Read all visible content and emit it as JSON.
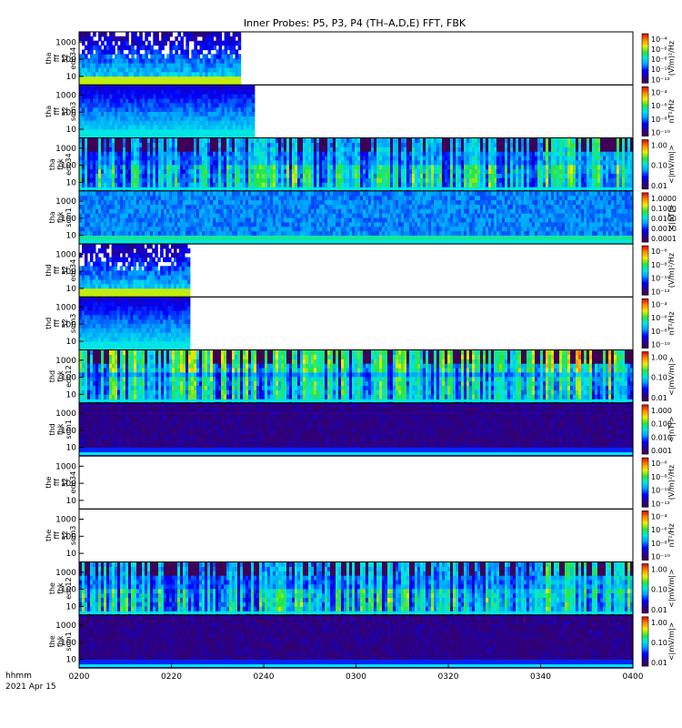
{
  "title": "Inner Probes: P5, P3, P4 (TH–A,D,E) FFT, FBK",
  "time_axis": {
    "unit_label": "hhmm",
    "date_label": "2021 Apr 15",
    "ticks": [
      "0200",
      "0220",
      "0240",
      "0300",
      "0320",
      "0340",
      "0400"
    ]
  },
  "chart_data": {
    "type": "heatmap",
    "title": "Inner Probes: P5, P3, P4 (TH–A,D,E) FFT, FBK",
    "x_range": [
      "02:00",
      "04:00"
    ],
    "y_scale": "log",
    "y_ticks": [
      10,
      100,
      1000
    ],
    "panels": [
      {
        "label": [
          "tha",
          "fff",
          "32",
          "edc34"
        ],
        "data_end": "02:35",
        "color_scale": "log",
        "cb_ticks": [
          "10⁻⁴",
          "10⁻⁶",
          "10⁻⁸",
          "10⁻¹⁰",
          "10⁻¹²"
        ],
        "cb_unit": "(V/m)²/Hz",
        "style": "fft_e"
      },
      {
        "label": [
          "tha",
          "fff",
          "32",
          "scm3"
        ],
        "data_end": "02:38",
        "color_scale": "log",
        "cb_ticks": [
          "10⁻⁴",
          "10⁻⁶",
          "10⁻⁸",
          "10⁻¹⁰"
        ],
        "cb_unit": "nT²/Hz",
        "style": "fft_b"
      },
      {
        "label": [
          "tha",
          "fbk",
          "edc34"
        ],
        "data_end": "04:00",
        "color_scale": "log",
        "cb_ticks": [
          "1.00",
          "0.10",
          "0.01"
        ],
        "cb_unit": "<|mV/m|>",
        "style": "fbk_e"
      },
      {
        "label": [
          "tha",
          "fbk",
          "scm1"
        ],
        "data_end": "04:00",
        "color_scale": "log",
        "cb_ticks": [
          "1.0000",
          "0.1000",
          "0.0100",
          "0.0010",
          "0.0001"
        ],
        "cb_unit": "<|nT|>",
        "style": "fbk_b"
      },
      {
        "label": [
          "thd",
          "fff",
          "32",
          "edc34"
        ],
        "data_end": "02:24",
        "color_scale": "log",
        "cb_ticks": [
          "10⁻⁶",
          "10⁻⁸",
          "10⁻¹⁰",
          "10⁻¹²"
        ],
        "cb_unit": "(V/m)²/Hz",
        "style": "fft_e"
      },
      {
        "label": [
          "thd",
          "fff",
          "32",
          "scm3"
        ],
        "data_end": "02:24",
        "color_scale": "log",
        "cb_ticks": [
          "10⁻⁴",
          "10⁻⁶",
          "10⁻⁸",
          "10⁻¹⁰"
        ],
        "cb_unit": "nT²/Hz",
        "style": "fft_b"
      },
      {
        "label": [
          "thd",
          "fbk",
          "edc12"
        ],
        "data_end": "04:00",
        "color_scale": "log",
        "cb_ticks": [
          "1.00",
          "0.10",
          "0.01"
        ],
        "cb_unit": "<|mV/m|>",
        "style": "fbk_e_strong"
      },
      {
        "label": [
          "thd",
          "fbk",
          "scm1"
        ],
        "data_end": "04:00",
        "color_scale": "log",
        "cb_ticks": [
          "1.000",
          "0.100",
          "0.010",
          "0.001"
        ],
        "cb_unit": "<|nT|>",
        "style": "fbk_b_low"
      },
      {
        "label": [
          "the",
          "fff",
          "32",
          "edc34"
        ],
        "data_end": "",
        "color_scale": "log",
        "cb_ticks": [
          "10⁻⁶",
          "10⁻⁸",
          "10⁻¹⁰",
          "10⁻¹²"
        ],
        "cb_unit": "(V/m)²/Hz",
        "style": "empty"
      },
      {
        "label": [
          "the",
          "fff",
          "32",
          "scm3"
        ],
        "data_end": "",
        "color_scale": "log",
        "cb_ticks": [
          "10⁻⁴",
          "10⁻⁶",
          "10⁻⁸",
          "10⁻¹⁰"
        ],
        "cb_unit": "nT²/Hz",
        "style": "empty"
      },
      {
        "label": [
          "the",
          "fbk",
          "edc12"
        ],
        "data_end": "04:00",
        "color_scale": "log",
        "cb_ticks": [
          "1.00",
          "0.10",
          "0.01"
        ],
        "cb_unit": "<|mV/m|>",
        "style": "fbk_e"
      },
      {
        "label": [
          "the",
          "fbk",
          "scm1"
        ],
        "data_end": "04:00",
        "color_scale": "log",
        "cb_ticks": [
          "1.00",
          "0.10",
          "0.01"
        ],
        "cb_unit": "<|mV/m|>",
        "style": "fbk_b_low"
      }
    ]
  }
}
